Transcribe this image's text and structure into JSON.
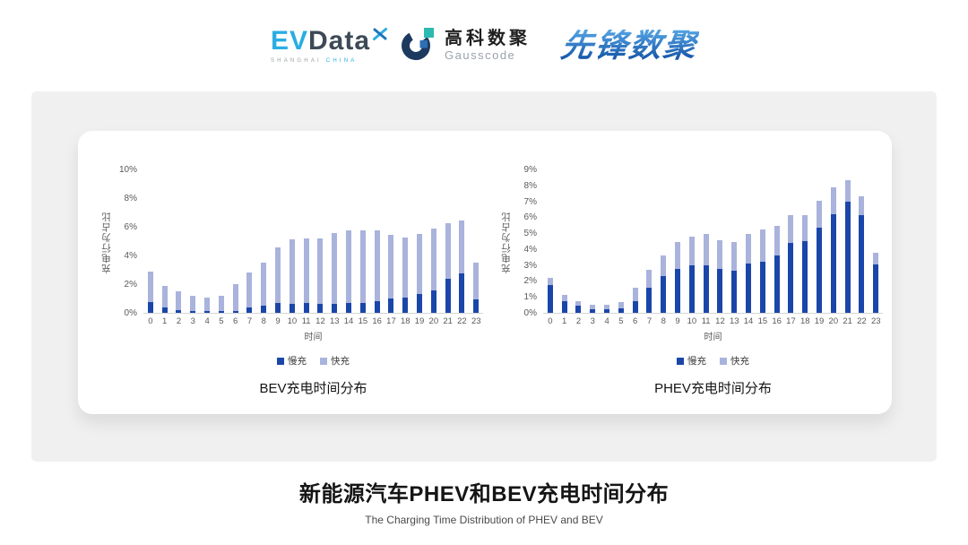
{
  "header": {
    "logos": {
      "evdata": {
        "ev": "EV",
        "data": "Data",
        "sub_left": "SHANGHAI",
        "sub_right": "CHINA"
      },
      "gausscode": {
        "cn": "高科数聚",
        "en": "Gausscode"
      },
      "xianfeng": {
        "text": "先锋数聚"
      }
    }
  },
  "footer": {
    "title": "新能源汽车PHEV和BEV充电时间分布",
    "subtitle": "The Charging Time Distribution of PHEV and BEV"
  },
  "colors": {
    "slow_charge": "#1B46A9",
    "fast_charge": "#A9B3DC",
    "band_background": "#F0F0F0",
    "axis_text": "#595959",
    "evdata_blue": "#2BADE3",
    "gausscode_navy": "#1C3A60",
    "gausscode_teal": "#2CB9B0",
    "xianfeng_blue": "#2878C8"
  },
  "chart_data": [
    {
      "type": "bar",
      "stacked": true,
      "title": "BEV充电时间分布",
      "xlabel": "时间",
      "ylabel": "充电行为占比",
      "ylim": [
        0,
        10
      ],
      "yticks": [
        0,
        2,
        4,
        6,
        8,
        10
      ],
      "grid": false,
      "legend_position": "bottom",
      "categories": [
        "0",
        "1",
        "2",
        "3",
        "4",
        "5",
        "6",
        "7",
        "8",
        "9",
        "10",
        "11",
        "12",
        "13",
        "14",
        "15",
        "16",
        "17",
        "18",
        "19",
        "20",
        "21",
        "22",
        "23"
      ],
      "series": [
        {
          "name": "慢充",
          "color": "#1B46A9",
          "values": [
            0.75,
            0.35,
            0.2,
            0.1,
            0.1,
            0.12,
            0.15,
            0.35,
            0.5,
            0.7,
            0.65,
            0.7,
            0.6,
            0.65,
            0.7,
            0.7,
            0.85,
            1.0,
            1.1,
            1.3,
            1.6,
            2.4,
            2.75,
            0.95
          ]
        },
        {
          "name": "快充",
          "color": "#A9B3DC",
          "values": [
            2.15,
            1.55,
            1.3,
            1.1,
            0.95,
            1.08,
            1.85,
            2.45,
            3.05,
            3.9,
            4.5,
            4.5,
            4.6,
            4.95,
            5.1,
            5.1,
            4.95,
            4.45,
            4.2,
            4.25,
            4.3,
            3.9,
            3.75,
            2.6
          ]
        }
      ]
    },
    {
      "type": "bar",
      "stacked": true,
      "title": "PHEV充电时间分布",
      "xlabel": "时间",
      "ylabel": "充电行为占比",
      "ylim": [
        0,
        9
      ],
      "yticks": [
        0,
        1,
        2,
        3,
        4,
        5,
        6,
        7,
        8,
        9
      ],
      "grid": false,
      "legend_position": "bottom",
      "categories": [
        "0",
        "1",
        "2",
        "3",
        "4",
        "5",
        "6",
        "7",
        "8",
        "9",
        "10",
        "11",
        "12",
        "13",
        "14",
        "15",
        "16",
        "17",
        "18",
        "19",
        "20",
        "21",
        "22",
        "23"
      ],
      "series": [
        {
          "name": "慢充",
          "color": "#1B46A9",
          "values": [
            1.75,
            0.75,
            0.45,
            0.25,
            0.25,
            0.3,
            0.75,
            1.6,
            2.3,
            2.8,
            3.0,
            3.0,
            2.8,
            2.65,
            3.1,
            3.25,
            3.6,
            4.4,
            4.55,
            5.35,
            6.2,
            7.0,
            6.15,
            3.05
          ]
        },
        {
          "name": "快充",
          "color": "#A9B3DC",
          "values": [
            0.45,
            0.4,
            0.3,
            0.25,
            0.25,
            0.4,
            0.85,
            1.1,
            1.35,
            1.7,
            1.8,
            2.0,
            1.8,
            1.85,
            1.9,
            2.0,
            1.9,
            1.75,
            1.6,
            1.75,
            1.7,
            1.4,
            1.2,
            0.75
          ]
        }
      ]
    }
  ]
}
